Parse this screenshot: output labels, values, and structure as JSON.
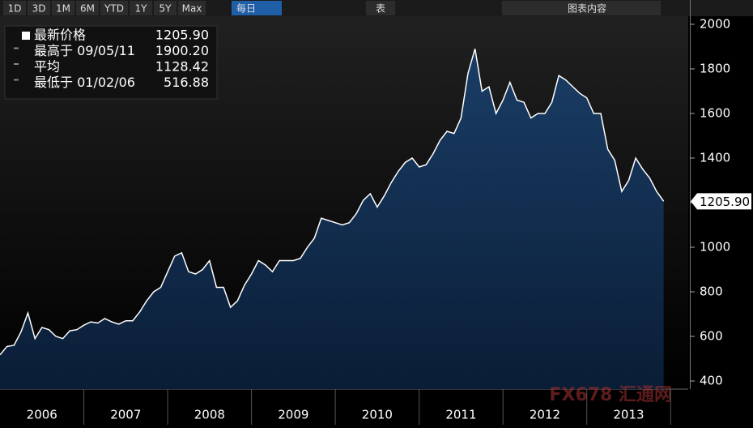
{
  "toolbar": {
    "buttons": [
      "1D",
      "3D",
      "1M",
      "6M",
      "YTD",
      "1Y",
      "5Y",
      "Max"
    ],
    "frequency": "每日",
    "table": "表",
    "content": "图表内容"
  },
  "watermark": "FX678 汇通网",
  "chart_data": {
    "type": "area",
    "color": "#ffffff",
    "fill": "#123457",
    "stats": [
      {
        "label": "最新价格",
        "value": "1205.90"
      },
      {
        "label": "最高于 09/05/11",
        "value": "1900.20"
      },
      {
        "label": "平均",
        "value": "1128.42"
      },
      {
        "label": "最低于 01/02/06",
        "value": "516.88"
      }
    ],
    "x": [
      2006,
      2006.083,
      2006.167,
      2006.25,
      2006.333,
      2006.417,
      2006.5,
      2006.583,
      2006.667,
      2006.75,
      2006.833,
      2006.917,
      2007,
      2007.083,
      2007.167,
      2007.25,
      2007.333,
      2007.417,
      2007.5,
      2007.583,
      2007.667,
      2007.75,
      2007.833,
      2007.917,
      2008,
      2008.083,
      2008.167,
      2008.25,
      2008.333,
      2008.417,
      2008.5,
      2008.583,
      2008.667,
      2008.75,
      2008.833,
      2008.917,
      2009,
      2009.083,
      2009.167,
      2009.25,
      2009.333,
      2009.417,
      2009.5,
      2009.583,
      2009.667,
      2009.75,
      2009.833,
      2009.917,
      2010,
      2010.083,
      2010.167,
      2010.25,
      2010.333,
      2010.417,
      2010.5,
      2010.583,
      2010.667,
      2010.75,
      2010.833,
      2010.917,
      2011,
      2011.083,
      2011.167,
      2011.25,
      2011.333,
      2011.417,
      2011.5,
      2011.583,
      2011.667,
      2011.75,
      2011.833,
      2011.917,
      2012,
      2012.083,
      2012.167,
      2012.25,
      2012.333,
      2012.417,
      2012.5,
      2012.583,
      2012.667,
      2012.75,
      2012.833,
      2012.917,
      2013,
      2013.083,
      2013.167,
      2013.25,
      2013.333,
      2013.417,
      2013.5,
      2013.583,
      2013.667,
      2013.75,
      2013.833,
      2013.917
    ],
    "values": [
      517,
      555,
      560,
      620,
      705,
      590,
      640,
      630,
      600,
      590,
      625,
      630,
      650,
      665,
      660,
      680,
      665,
      655,
      670,
      670,
      710,
      760,
      800,
      820,
      890,
      960,
      975,
      890,
      880,
      900,
      940,
      820,
      820,
      730,
      760,
      830,
      880,
      940,
      920,
      890,
      940,
      940,
      940,
      950,
      1000,
      1040,
      1130,
      1120,
      1110,
      1100,
      1110,
      1150,
      1210,
      1240,
      1180,
      1230,
      1290,
      1340,
      1380,
      1400,
      1360,
      1370,
      1420,
      1480,
      1520,
      1510,
      1580,
      1780,
      1890,
      1700,
      1720,
      1600,
      1660,
      1740,
      1660,
      1650,
      1580,
      1600,
      1600,
      1650,
      1770,
      1750,
      1720,
      1690,
      1670,
      1600,
      1600,
      1440,
      1390,
      1250,
      1300,
      1400,
      1350,
      1310,
      1250,
      1206
    ],
    "xlim": [
      2006,
      2014.21
    ],
    "xticks": [
      {
        "value": 2006.5,
        "label": "2006"
      },
      {
        "value": 2007.5,
        "label": "2007"
      },
      {
        "value": 2008.5,
        "label": "2008"
      },
      {
        "value": 2009.5,
        "label": "2009"
      },
      {
        "value": 2010.5,
        "label": "2010"
      },
      {
        "value": 2011.5,
        "label": "2011"
      },
      {
        "value": 2012.5,
        "label": "2012"
      },
      {
        "value": 2013.5,
        "label": "2013"
      }
    ],
    "ylim": [
      363.6,
      2029
    ],
    "yticks": [
      400,
      600,
      800,
      1000,
      1200,
      1400,
      1600,
      1800,
      2000
    ]
  }
}
